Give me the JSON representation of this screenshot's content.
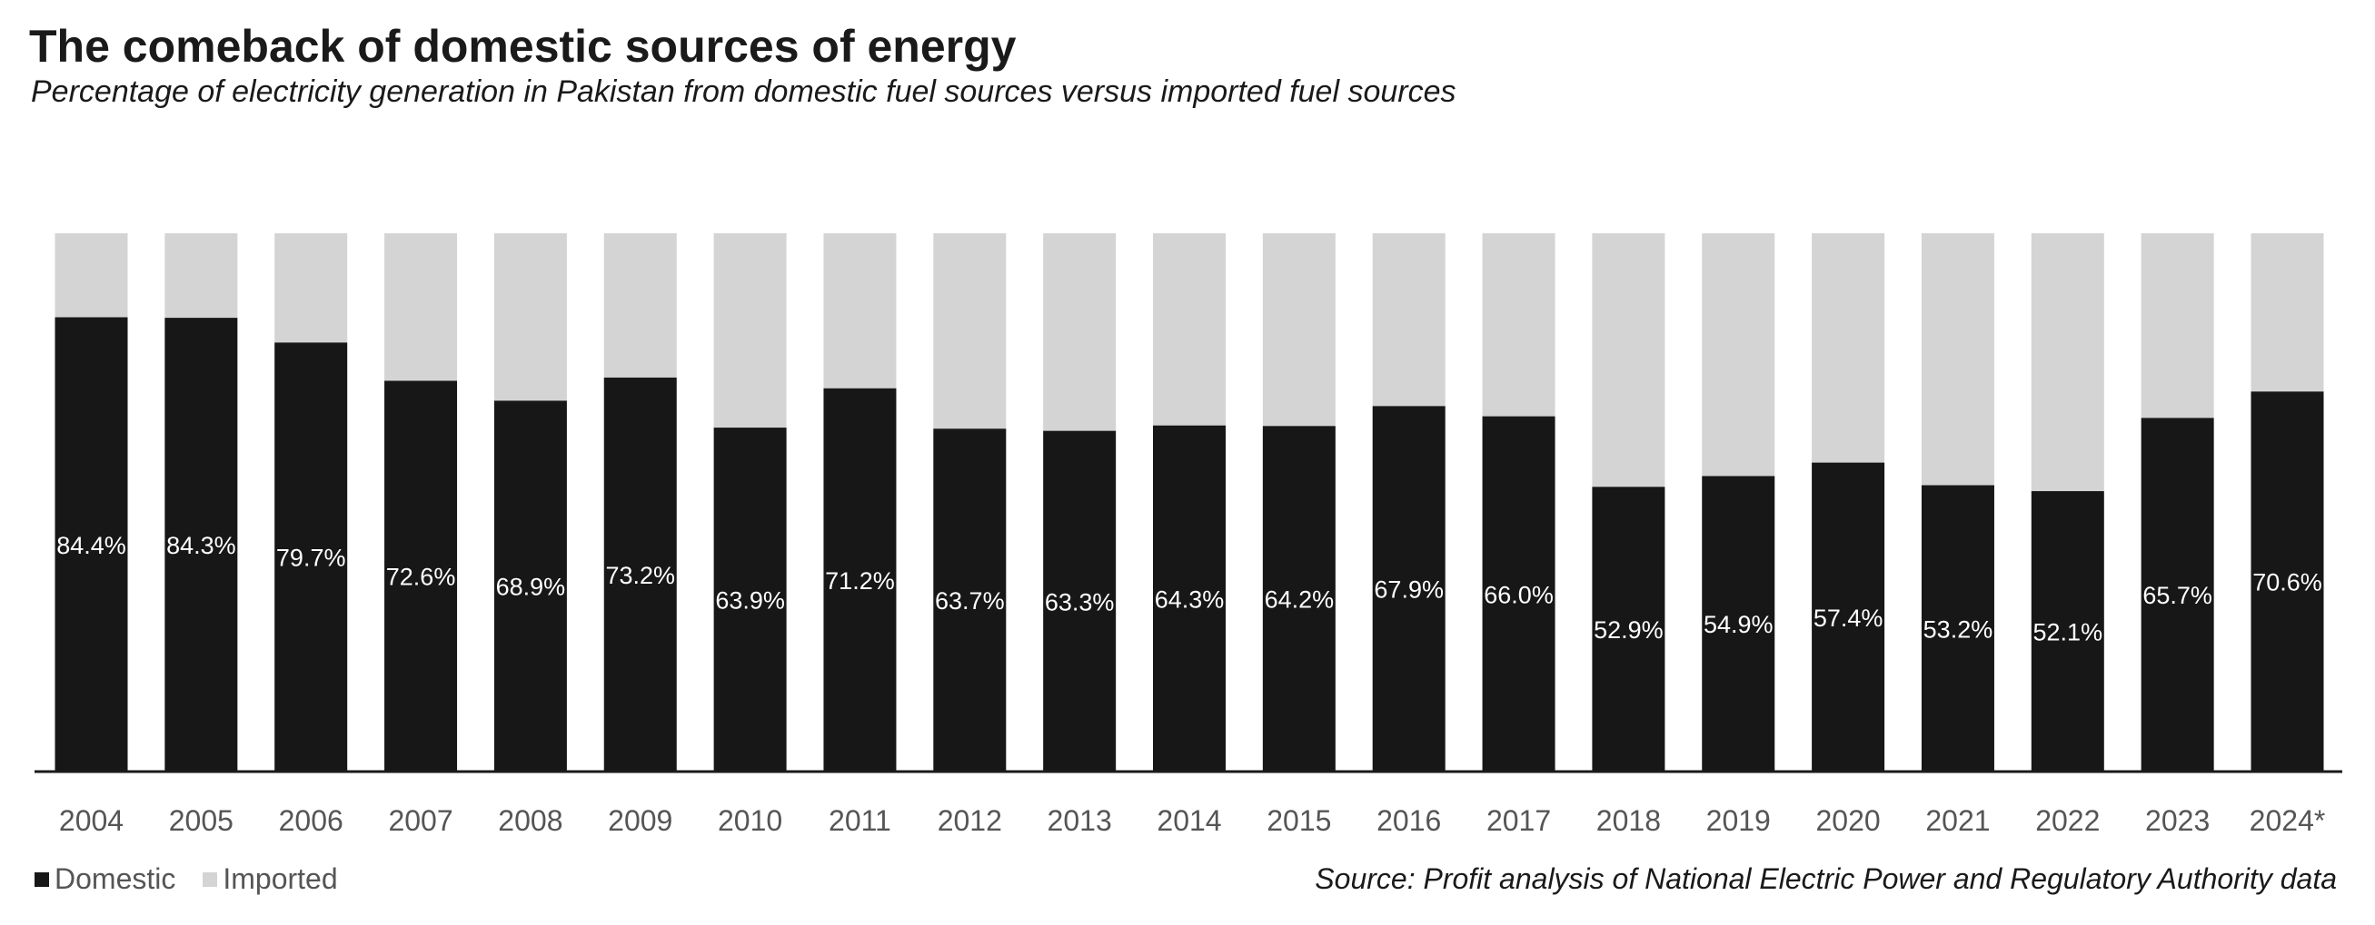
{
  "header": {
    "title": "The comeback of domestic sources of energy",
    "subtitle": "Percentage of electricity generation in Pakistan from domestic fuel sources versus imported fuel sources"
  },
  "legend": {
    "domestic_label": "Domestic",
    "imported_label": "Imported"
  },
  "footer": {
    "source": "Source: Profit analysis of National Electric Power and Regulatory Authority data"
  },
  "colors": {
    "domestic": "#171717",
    "imported": "#d4d4d4",
    "baseline": "#1a1a1a",
    "tick_label": "#555555",
    "data_label": "#ffffff"
  },
  "chart_data": {
    "type": "bar",
    "stacked": true,
    "normalized_to_100": true,
    "categories": [
      "2004",
      "2005",
      "2006",
      "2007",
      "2008",
      "2009",
      "2010",
      "2011",
      "2012",
      "2013",
      "2014",
      "2015",
      "2016",
      "2017",
      "2018",
      "2019",
      "2020",
      "2021",
      "2022",
      "2023",
      "2024*"
    ],
    "series": [
      {
        "name": "Domestic",
        "values": [
          84.4,
          84.3,
          79.7,
          72.6,
          68.9,
          73.2,
          63.9,
          71.2,
          63.7,
          63.3,
          64.3,
          64.2,
          67.9,
          66.0,
          52.9,
          54.9,
          57.4,
          53.2,
          52.1,
          65.7,
          70.6
        ],
        "labels": [
          "84.4%",
          "84.3%",
          "79.7%",
          "72.6%",
          "68.9%",
          "73.2%",
          "63.9%",
          "71.2%",
          "63.7%",
          "63.3%",
          "64.3%",
          "64.2%",
          "67.9%",
          "66.0%",
          "52.9%",
          "54.9%",
          "57.4%",
          "53.2%",
          "52.1%",
          "65.7%",
          "70.6%"
        ]
      },
      {
        "name": "Imported",
        "values": [
          15.6,
          15.7,
          20.3,
          27.4,
          31.1,
          26.8,
          36.1,
          28.8,
          36.3,
          36.7,
          35.7,
          35.8,
          32.1,
          34.0,
          47.1,
          45.1,
          42.6,
          46.8,
          47.9,
          34.3,
          29.4
        ]
      }
    ],
    "ylim": [
      0,
      100
    ],
    "grid": false,
    "legend_position": "bottom-left"
  }
}
